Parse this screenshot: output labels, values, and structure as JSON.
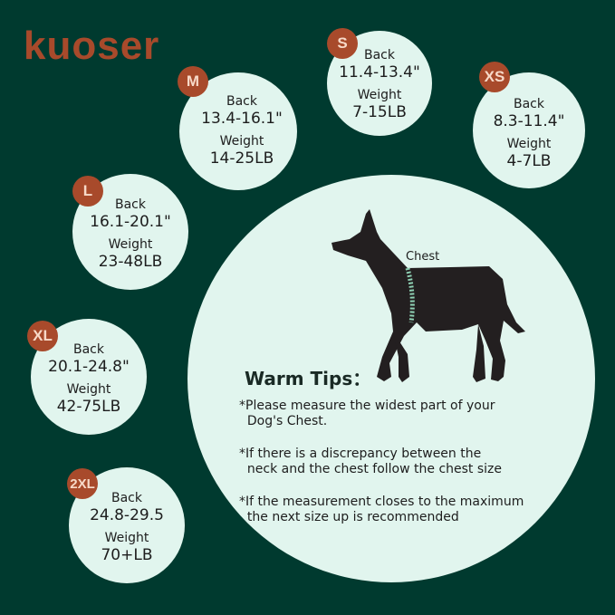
{
  "brand": {
    "logo": "kuoser",
    "color": "#a84a2b"
  },
  "colors": {
    "background": "#003a2f",
    "circle": "#e1f5ee",
    "badge": "#a84a2b"
  },
  "sizes": [
    {
      "size": "M",
      "back_label": "Back",
      "back": "13.4-16.1\"",
      "weight_label": "Weight",
      "weight": "14-25LB"
    },
    {
      "size": "S",
      "back_label": "Back",
      "back": "11.4-13.4\"",
      "weight_label": "Weight",
      "weight": "7-15LB"
    },
    {
      "size": "XS",
      "back_label": "Back",
      "back": "8.3-11.4\"",
      "weight_label": "Weight",
      "weight": "4-7LB"
    },
    {
      "size": "L",
      "back_label": "Back",
      "back": "16.1-20.1\"",
      "weight_label": "Weight",
      "weight": "23-48LB"
    },
    {
      "size": "XL",
      "back_label": "Back",
      "back": "20.1-24.8\"",
      "weight_label": "Weight",
      "weight": "42-75LB"
    },
    {
      "size": "2XL",
      "back_label": "Back",
      "back": "24.8-29.5",
      "weight_label": "Weight",
      "weight": "70+LB"
    }
  ],
  "diagram": {
    "chest_label": "Chest"
  },
  "tips": {
    "title": "Warm Tips：",
    "items": [
      [
        "*Please measure the widest part of your",
        "  Dog's Chest."
      ],
      [
        "*If there is a discrepancy between the",
        "  neck and the chest follow the chest size"
      ],
      [
        "*If the measurement closes to the maximum",
        "  the next size up is recommended"
      ]
    ]
  }
}
